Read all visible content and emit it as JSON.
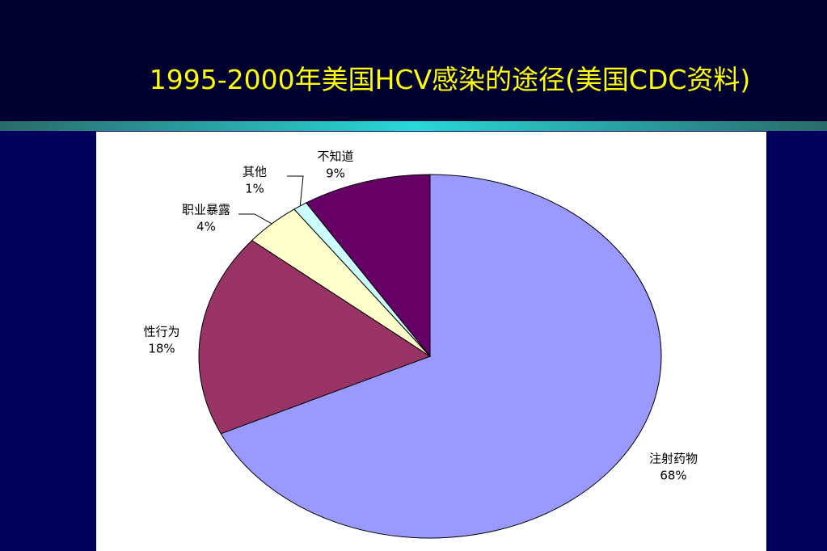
{
  "chart_data": {
    "type": "pie",
    "title": "1995-2000年美国HCV感染的途径(美国CDC资料)",
    "categories": [
      "注射药物",
      "性行为",
      "职业暴露",
      "其他",
      "不知道"
    ],
    "values": [
      68,
      18,
      4,
      1,
      9
    ],
    "value_labels": [
      "68%",
      "18%",
      "4%",
      "1%",
      "9%"
    ],
    "colors": [
      "#9999ff",
      "#993366",
      "#ffffcc",
      "#ccffff",
      "#660066"
    ]
  }
}
